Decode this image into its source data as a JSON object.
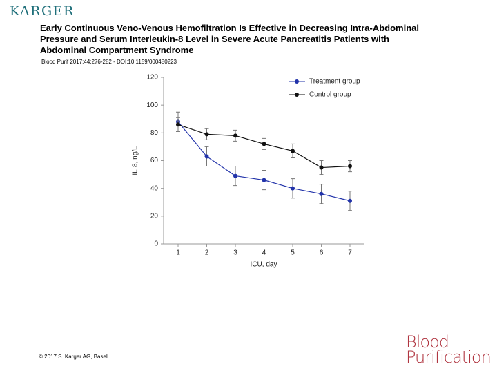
{
  "header": {
    "logo": "KARGER",
    "title_lines": [
      "Early Continuous Veno-Venous Hemofiltration Is Effective in Decreasing Intra-Abdominal",
      "Pressure and Serum Interleukin-8 Level in Severe Acute Pancreatitis Patients with",
      "Abdominal Compartment Syndrome"
    ],
    "citation": "Blood Purif 2017;44:276-282 - DOI:10.1159/000480223"
  },
  "chart_data": {
    "type": "line",
    "x_label": "ICU, day",
    "y_label": "IL-8, ng/L",
    "categories": [
      "1",
      "2",
      "3",
      "4",
      "5",
      "6",
      "7"
    ],
    "series": [
      {
        "name": "Treatment group",
        "color": "#2233aa",
        "values": [
          88,
          63,
          49,
          46,
          40,
          36,
          31
        ],
        "errors": [
          7,
          7,
          7,
          7,
          7,
          7,
          7
        ]
      },
      {
        "name": "Control group",
        "color": "#111111",
        "values": [
          86,
          79,
          78,
          72,
          67,
          55,
          56
        ],
        "errors": [
          5,
          4,
          4,
          4,
          5,
          5,
          4
        ]
      }
    ],
    "ylim": [
      0,
      120
    ],
    "yticks": [
      0,
      20,
      40,
      60,
      80,
      100,
      120
    ],
    "legend": "upper right"
  },
  "footer": {
    "copyright": "© 2017 S. Karger AG, Basel",
    "journal_logo": [
      "Blood",
      "Purification"
    ]
  }
}
